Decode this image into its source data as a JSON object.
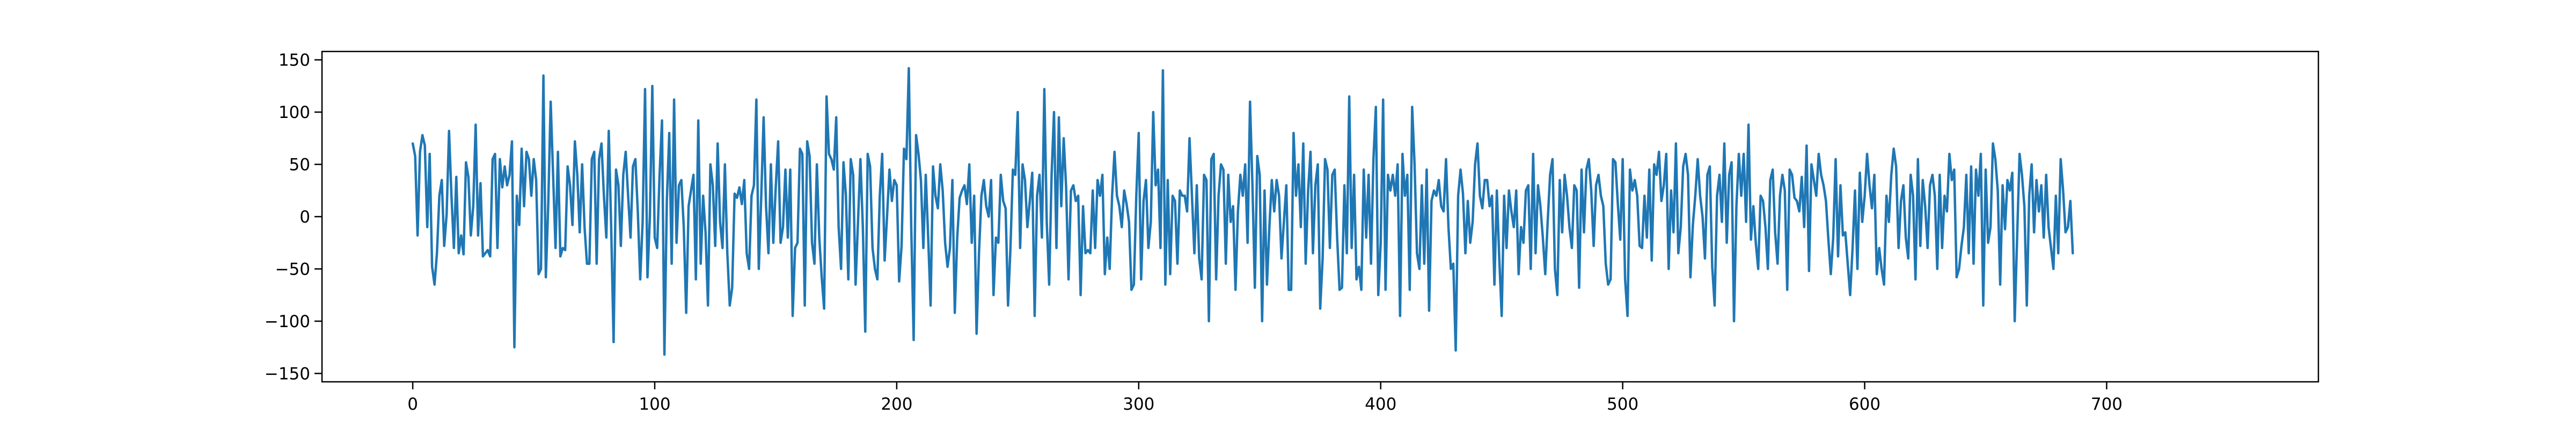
{
  "colors": {
    "series": "#1f77b4",
    "axis": "#000000",
    "background": "#ffffff"
  },
  "chart_data": {
    "type": "line",
    "title": "",
    "xlabel": "",
    "ylabel": "",
    "grid": false,
    "legend": "none",
    "xlim": [
      -37.5,
      787.5
    ],
    "ylim": [
      -158,
      158
    ],
    "xticks": [
      0,
      100,
      200,
      300,
      400,
      500,
      600,
      700
    ],
    "yticks": [
      -150,
      -100,
      -50,
      0,
      50,
      100,
      150
    ],
    "xtick_labels": [
      "0",
      "100",
      "200",
      "300",
      "400",
      "500",
      "600",
      "700"
    ],
    "ytick_labels": [
      "−150",
      "−100",
      "−50",
      "0",
      "50",
      "100",
      "150"
    ],
    "series": [
      {
        "x_start": 0,
        "x_step": 1,
        "values": [
          70,
          58,
          -18,
          62,
          78,
          68,
          -10,
          60,
          -48,
          -65,
          -35,
          20,
          35,
          -28,
          2,
          82,
          20,
          -30,
          38,
          -35,
          -18,
          -36,
          52,
          38,
          -18,
          10,
          88,
          -18,
          32,
          -38,
          -35,
          -32,
          -38,
          55,
          60,
          -30,
          55,
          28,
          48,
          30,
          40,
          72,
          -125,
          20,
          -8,
          65,
          10,
          62,
          55,
          20,
          55,
          35,
          -55,
          -50,
          135,
          -58,
          12,
          110,
          40,
          -30,
          62,
          -38,
          -30,
          -32,
          48,
          30,
          -8,
          72,
          40,
          -15,
          50,
          -10,
          -45,
          -45,
          55,
          62,
          -45,
          55,
          70,
          20,
          -20,
          82,
          -10,
          -120,
          45,
          30,
          -28,
          40,
          62,
          20,
          -20,
          48,
          55,
          5,
          -60,
          -5,
          122,
          -58,
          0,
          125,
          -20,
          -30,
          40,
          92,
          -132,
          15,
          80,
          -45,
          112,
          -25,
          30,
          35,
          -10,
          -92,
          10,
          25,
          40,
          -60,
          92,
          -45,
          20,
          -15,
          -85,
          50,
          30,
          -28,
          70,
          -5,
          -30,
          50,
          -35,
          -85,
          -68,
          22,
          18,
          28,
          12,
          35,
          -35,
          -50,
          20,
          30,
          112,
          -50,
          18,
          95,
          10,
          -35,
          50,
          -25,
          28,
          72,
          -25,
          -10,
          45,
          -20,
          45,
          -95,
          -30,
          -25,
          65,
          60,
          -85,
          72,
          58,
          -25,
          -45,
          50,
          -20,
          -58,
          -88,
          115,
          60,
          55,
          45,
          95,
          -10,
          -50,
          52,
          20,
          -60,
          55,
          40,
          -65,
          -5,
          55,
          -10,
          -110,
          60,
          48,
          -30,
          -50,
          -60,
          20,
          60,
          -42,
          0,
          45,
          15,
          35,
          30,
          -62,
          -28,
          65,
          55,
          142,
          -10,
          -118,
          78,
          60,
          35,
          -30,
          40,
          -20,
          -85,
          48,
          20,
          8,
          50,
          25,
          -25,
          -48,
          -30,
          35,
          -92,
          -20,
          18,
          25,
          30,
          12,
          50,
          -25,
          20,
          -112,
          -35,
          20,
          35,
          10,
          0,
          35,
          -75,
          -20,
          -25,
          40,
          15,
          8,
          -85,
          -30,
          45,
          40,
          100,
          -30,
          50,
          35,
          -10,
          15,
          42,
          -95,
          20,
          40,
          -20,
          122,
          -5,
          -65,
          40,
          100,
          -30,
          95,
          10,
          75,
          28,
          -60,
          25,
          30,
          15,
          20,
          -75,
          10,
          -35,
          -32,
          -35,
          25,
          -30,
          35,
          20,
          40,
          -55,
          -20,
          -50,
          20,
          62,
          20,
          10,
          -10,
          25,
          12,
          -5,
          -70,
          -65,
          20,
          80,
          -60,
          15,
          35,
          -30,
          -5,
          100,
          30,
          45,
          -30,
          140,
          -65,
          35,
          -55,
          20,
          15,
          -45,
          25,
          20,
          20,
          5,
          75,
          20,
          -35,
          30,
          -40,
          -60,
          40,
          35,
          -100,
          55,
          60,
          -60,
          20,
          50,
          45,
          -45,
          40,
          -5,
          10,
          -70,
          5,
          40,
          20,
          50,
          -25,
          110,
          30,
          -68,
          58,
          40,
          -100,
          25,
          -65,
          -10,
          35,
          5,
          35,
          20,
          -40,
          -5,
          30,
          -70,
          -70,
          80,
          20,
          50,
          -10,
          70,
          -45,
          25,
          62,
          -35,
          30,
          50,
          -88,
          -40,
          55,
          45,
          -30,
          40,
          45,
          -20,
          -70,
          -68,
          30,
          -35,
          115,
          -30,
          40,
          -60,
          -48,
          -70,
          45,
          -20,
          40,
          -45,
          55,
          105,
          -75,
          -25,
          112,
          -70,
          40,
          25,
          40,
          20,
          50,
          -95,
          60,
          20,
          40,
          -70,
          105,
          50,
          -35,
          -50,
          30,
          -45,
          45,
          -90,
          15,
          25,
          20,
          35,
          10,
          5,
          55,
          -10,
          -50,
          -45,
          -128,
          20,
          45,
          22,
          -35,
          15,
          -25,
          -5,
          50,
          70,
          20,
          8,
          35,
          35,
          10,
          20,
          -65,
          25,
          -40,
          -95,
          20,
          -30,
          25,
          5,
          -10,
          25,
          -55,
          -10,
          -25,
          25,
          30,
          -50,
          60,
          -35,
          30,
          10,
          -20,
          -55,
          -5,
          40,
          55,
          -50,
          -75,
          35,
          -15,
          40,
          20,
          -10,
          -30,
          30,
          25,
          -68,
          45,
          -15,
          45,
          55,
          25,
          -28,
          30,
          40,
          20,
          10,
          -45,
          -65,
          -60,
          55,
          52,
          12,
          -22,
          55,
          -60,
          -95,
          45,
          25,
          35,
          20,
          -28,
          -30,
          20,
          -20,
          45,
          -42,
          50,
          40,
          62,
          15,
          30,
          60,
          -50,
          25,
          -15,
          70,
          -35,
          -10,
          48,
          60,
          40,
          -58,
          -8,
          20,
          55,
          20,
          0,
          -40,
          40,
          48,
          -48,
          -85,
          20,
          40,
          -5,
          70,
          -25,
          40,
          52,
          -100,
          10,
          60,
          20,
          60,
          -5,
          88,
          -22,
          10,
          -25,
          -50,
          20,
          15,
          -10,
          -50,
          35,
          45,
          -15,
          -45,
          20,
          40,
          25,
          -70,
          45,
          40,
          18,
          15,
          5,
          38,
          -10,
          68,
          -52,
          50,
          35,
          20,
          60,
          40,
          30,
          15,
          -22,
          -55,
          -20,
          55,
          -38,
          30,
          -18,
          -15,
          -45,
          -75,
          -30,
          25,
          -50,
          42,
          -5,
          20,
          60,
          30,
          8,
          40,
          -55,
          -30,
          -50,
          -65,
          20,
          -5,
          40,
          65,
          48,
          -30,
          15,
          30,
          -20,
          -40,
          40,
          20,
          -60,
          55,
          -28,
          35,
          10,
          -30,
          30,
          40,
          20,
          -50,
          40,
          -30,
          20,
          5,
          60,
          35,
          45,
          -58,
          -50,
          -28,
          -10,
          40,
          -35,
          48,
          -45,
          45,
          20,
          60,
          -85,
          45,
          -25,
          -10,
          70,
          55,
          25,
          -65,
          30,
          -12,
          35,
          25,
          42,
          -100,
          -20,
          60,
          40,
          10,
          -85,
          20,
          50,
          -15,
          35,
          5,
          30,
          -20,
          40,
          -10,
          -30,
          -50,
          20,
          -35,
          55,
          25,
          -15,
          -10,
          15,
          -35
        ]
      }
    ]
  }
}
